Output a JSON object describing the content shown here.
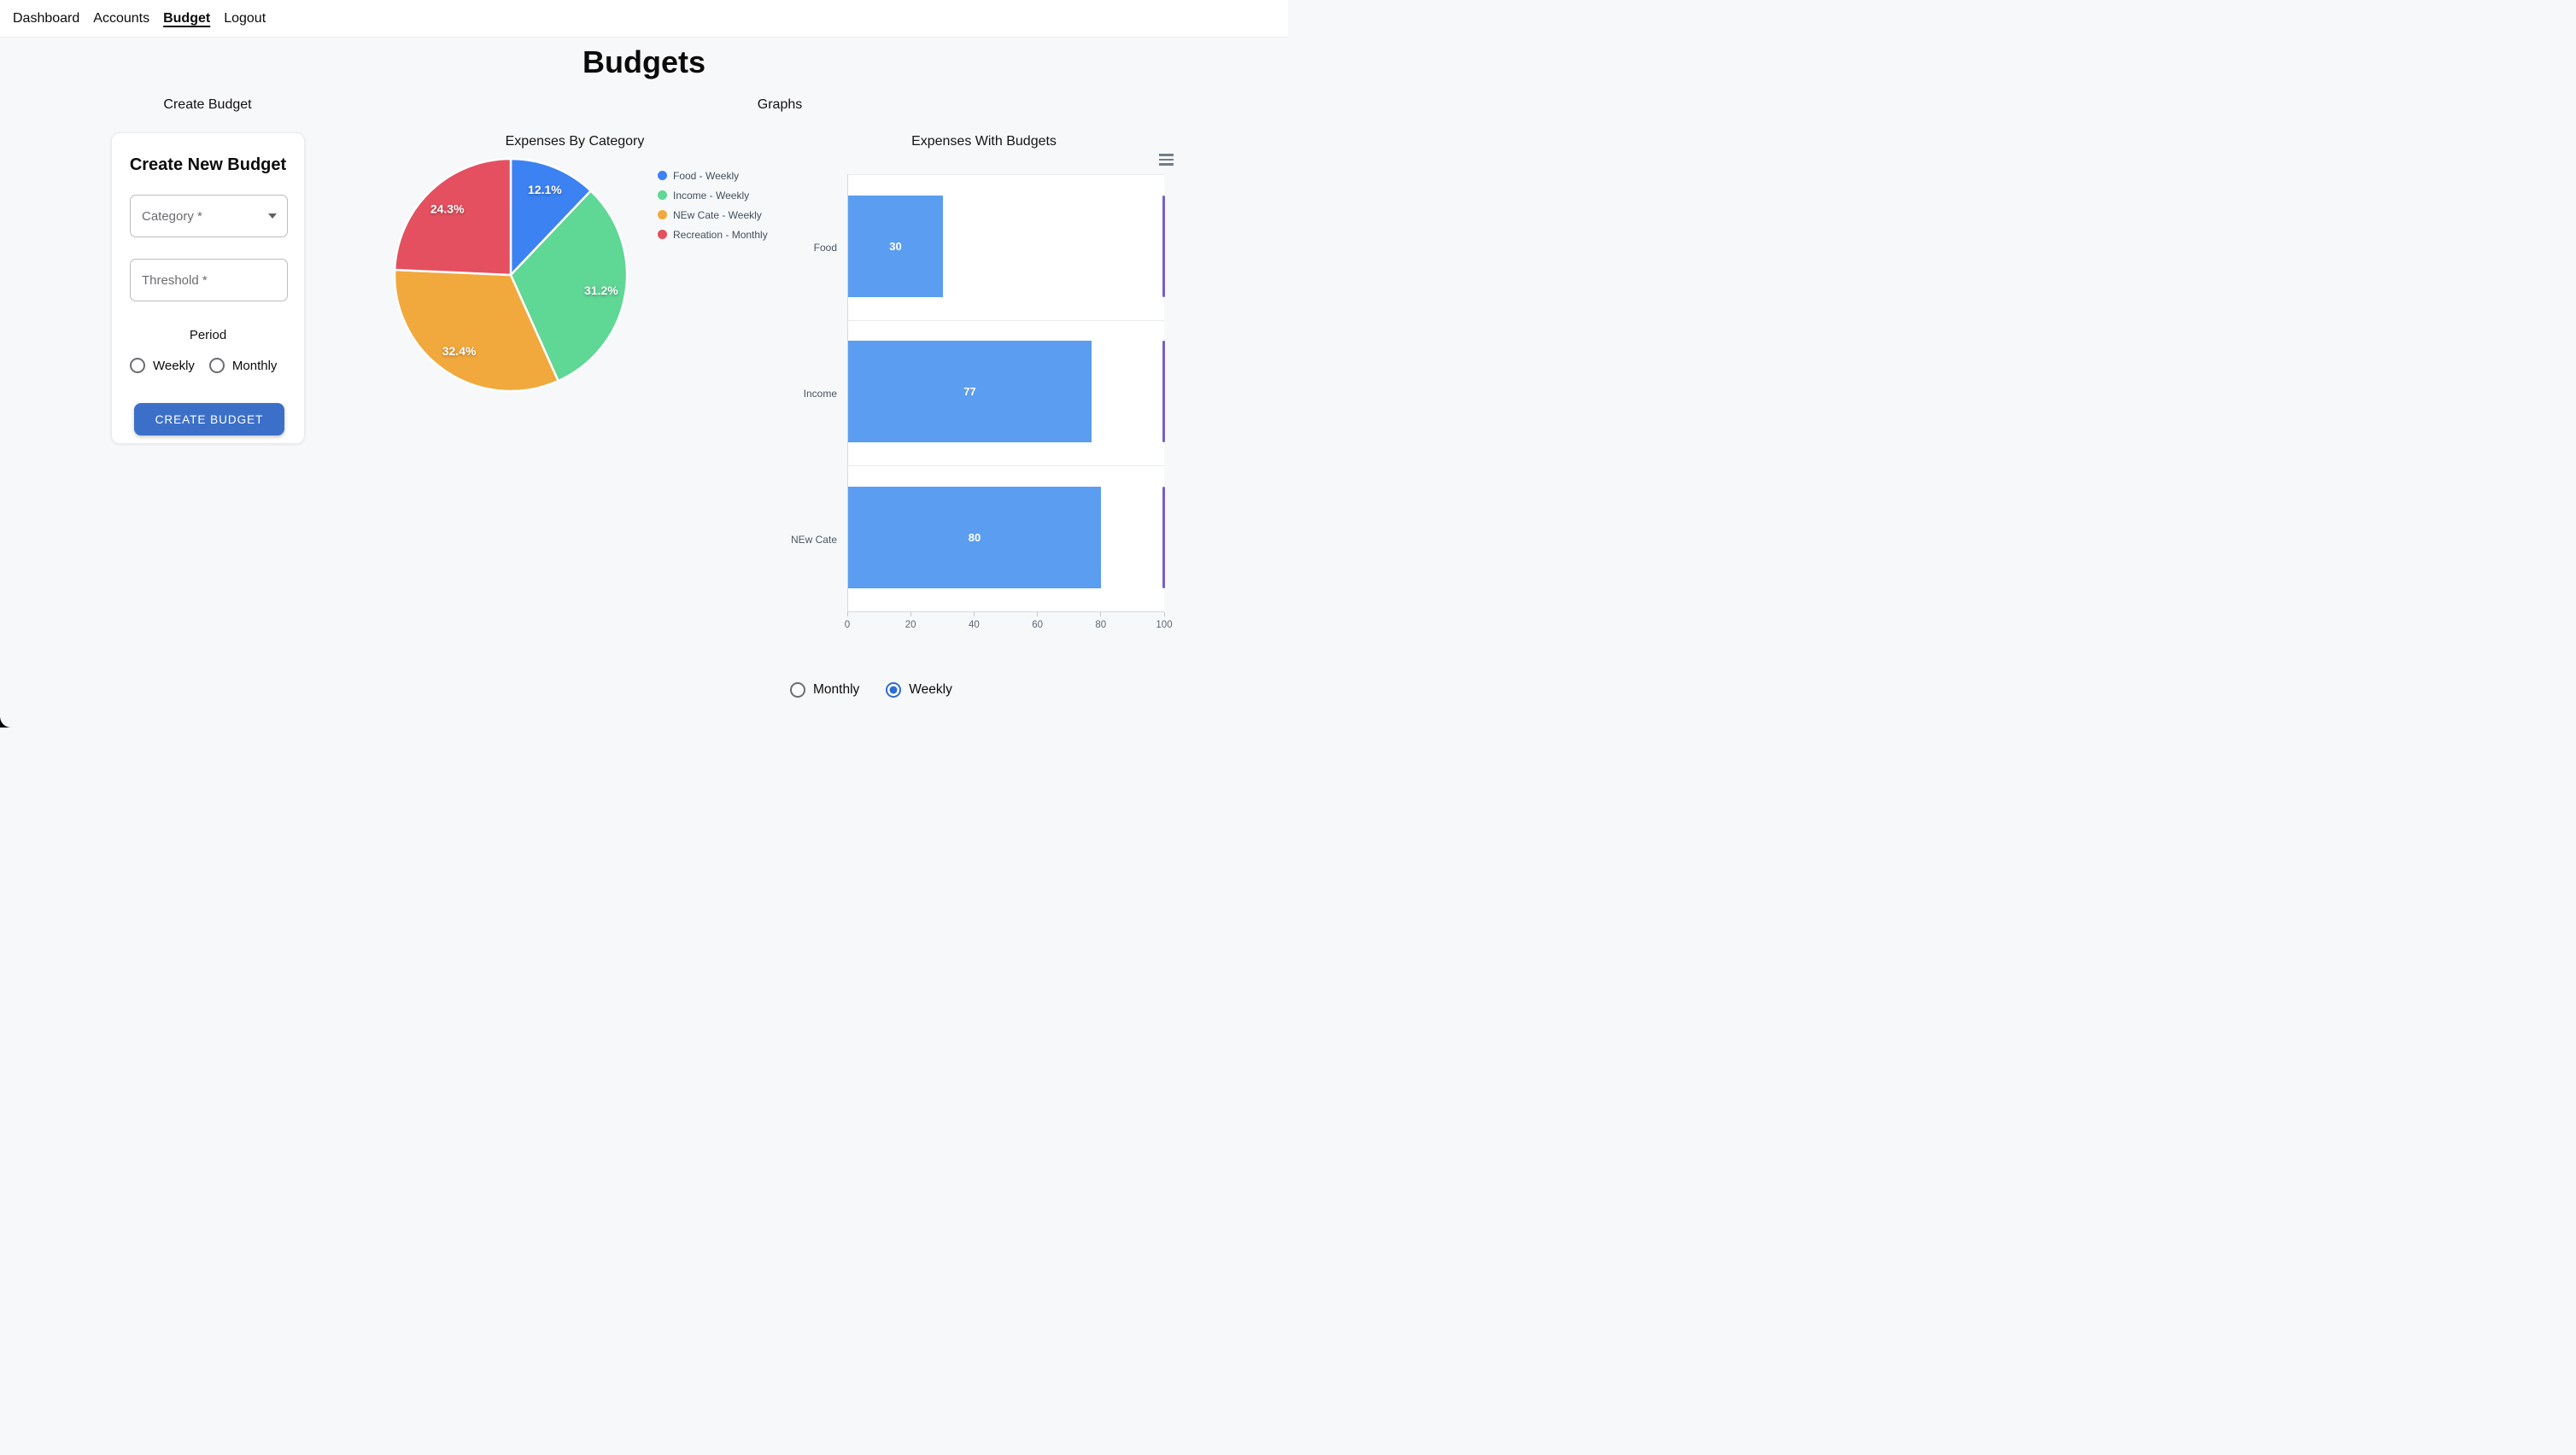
{
  "nav": {
    "items": [
      "Dashboard",
      "Accounts",
      "Budget",
      "Logout"
    ],
    "active": "Budget"
  },
  "page": {
    "title": "Budgets"
  },
  "sections": {
    "left_heading": "Create Budget",
    "right_heading": "Graphs"
  },
  "create_budget_form": {
    "heading": "Create New Budget",
    "category_placeholder": "Category *",
    "threshold_placeholder": "Threshold *",
    "period_label": "Period",
    "period_options": [
      "Weekly",
      "Monthly"
    ],
    "period_selected": null,
    "submit_label": "CREATE BUDGET",
    "submit_color": "#3C70C8"
  },
  "period_toggle": {
    "options": [
      "Monthly",
      "Weekly"
    ],
    "selected": "Weekly",
    "accent_color": "#2F6BD4",
    "inactive_ring_color": "#6d6d71"
  },
  "chart_data": [
    {
      "type": "pie",
      "title": "Expenses By Category",
      "labels": [
        "Food - Weekly",
        "Income - Weekly",
        "NEw Cate - Weekly",
        "Recreation - Monthly"
      ],
      "values": [
        12.1,
        31.2,
        32.4,
        24.3
      ],
      "value_labels": [
        "12.1%",
        "31.2%",
        "32.4%",
        "24.3%"
      ],
      "colors": [
        "#3D82F2",
        "#5FD795",
        "#F1A93D",
        "#E4505F"
      ],
      "start_angle_deg": 0,
      "direction": "clockwise",
      "legend_position": "right"
    },
    {
      "type": "bar",
      "orientation": "horizontal",
      "title": "Expenses With Budgets",
      "categories": [
        "Food",
        "Income",
        "NEw Cate"
      ],
      "values": [
        30,
        77,
        80
      ],
      "budget_markers": [
        100,
        100,
        100
      ],
      "xlim": [
        0,
        100
      ],
      "xticks": [
        0,
        20,
        40,
        60,
        80,
        100
      ],
      "bar_color": "#5B9DF0",
      "budget_marker_color": "#7A5EC8",
      "grid": true,
      "plot_background": "#ffffff"
    }
  ]
}
